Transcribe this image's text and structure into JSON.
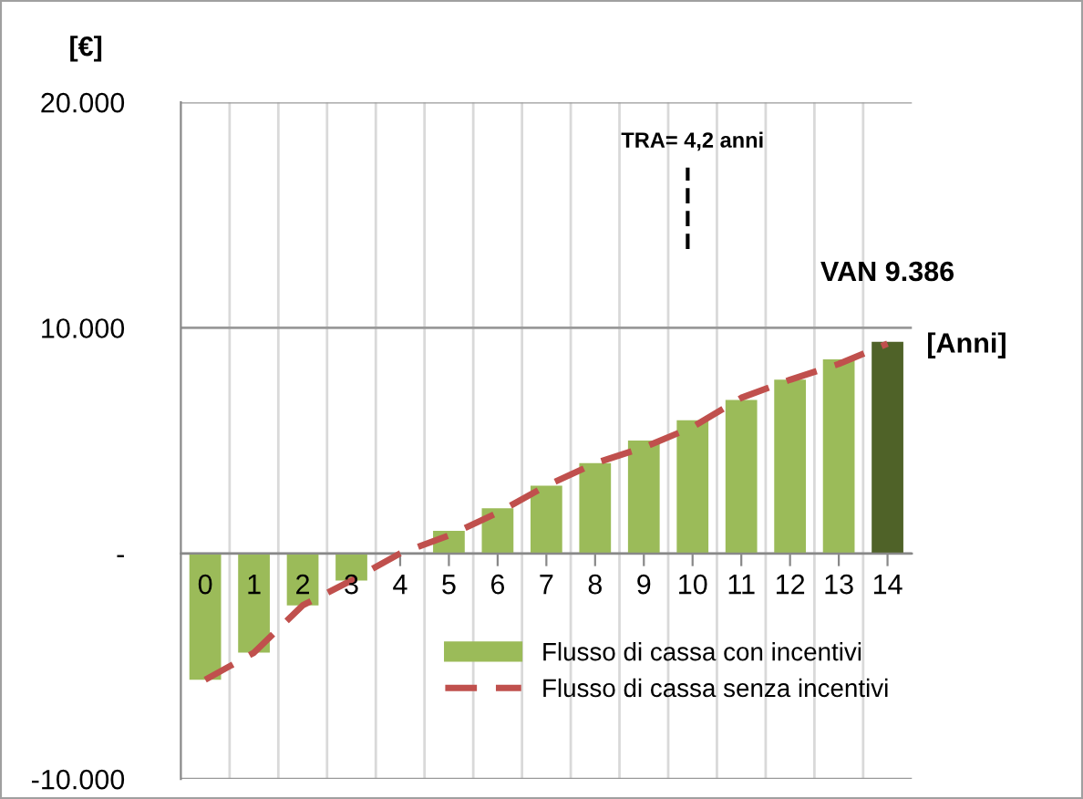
{
  "chart_data": {
    "type": "bar",
    "ylabel": "[€]",
    "xlabel": "[Anni]",
    "categories": [
      "0",
      "1",
      "2",
      "3",
      "4",
      "5",
      "6",
      "7",
      "8",
      "9",
      "10",
      "11",
      "12",
      "13",
      "14"
    ],
    "series": [
      {
        "name": "Flusso di cassa con incentivi",
        "colors": [
          "#9bbb59",
          "#9bbb59",
          "#9bbb59",
          "#9bbb59",
          "#9bbb59",
          "#9bbb59",
          "#9bbb59",
          "#9bbb59",
          "#9bbb59",
          "#9bbb59",
          "#9bbb59",
          "#9bbb59",
          "#9bbb59",
          "#9bbb59",
          "#4f6228"
        ],
        "values": [
          -5600,
          -4400,
          -2300,
          -1200,
          0,
          1000,
          2000,
          3000,
          4000,
          5000,
          5900,
          6800,
          7700,
          8600,
          9386
        ]
      },
      {
        "name": "Flusso di cassa senza incentivi",
        "type": "line",
        "color": "#c0504d",
        "line_style": "dashed",
        "values": [
          -5600,
          -4400,
          -2300,
          -1200,
          0,
          800,
          1800,
          3000,
          4000,
          4700,
          5600,
          6900,
          7700,
          8400,
          9300
        ]
      }
    ],
    "ylim": [
      -10000,
      20000
    ],
    "yticks": [
      {
        "value": -10000,
        "label": "-10.000"
      },
      {
        "value": 0,
        "label": "-"
      },
      {
        "value": 10000,
        "label": "10.000"
      },
      {
        "value": 20000,
        "label": "20.000"
      }
    ],
    "grid": true,
    "legend": "bottom right",
    "annotations": [
      "TRA= 4,2 anni",
      {
        "text": "VAN 9.386",
        "x": "14",
        "y": 9386
      }
    ]
  }
}
